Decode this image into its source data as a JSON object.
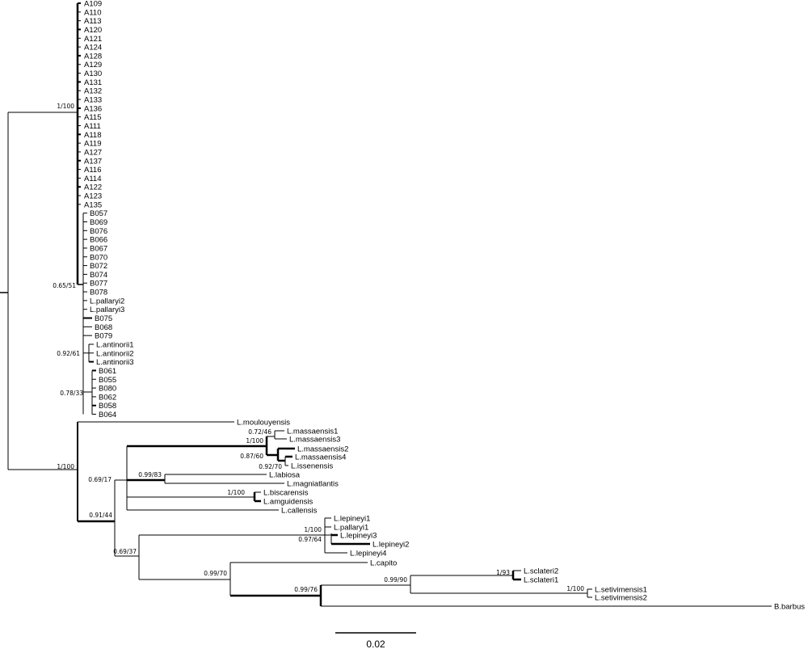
{
  "figure": {
    "type": "phylogenetic-tree",
    "scale_bar_label": "0.02",
    "line_color": "#000000",
    "background": "#ffffff"
  },
  "leaves": [
    "A109",
    "A110",
    "A113",
    "A120",
    "A121",
    "A124",
    "A128",
    "A129",
    "A130",
    "A131",
    "A132",
    "A133",
    "A136",
    "A115",
    "A111",
    "A118",
    "A119",
    "A127",
    "A137",
    "A116",
    "A114",
    "A122",
    "A123",
    "A135",
    "B057",
    "B069",
    "B076",
    "B066",
    "B067",
    "B070",
    "B072",
    "B074",
    "B077",
    "B078",
    "L.pallaryi2",
    "L.pallaryi3",
    "B075",
    "B068",
    "B079",
    "L.antinorii1",
    "L.antinorii2",
    "L.antinorii3",
    "B061",
    "B055",
    "B080",
    "B062",
    "B058",
    "B064",
    "L.moulouyensis",
    "L.massaensis1",
    "L.massaensis3",
    "L.massaensis2",
    "L.massaensis4",
    "L.issenensis",
    "L.labiosa",
    "L.magniatlantis",
    "L.biscarensis",
    "L.amguidensis",
    "L.callensis",
    "L.lepineyi1",
    "L.pallaryi1",
    "L.lepineyi3",
    "L.lepineyi2",
    "L.lepineyi4",
    "L.capito",
    "L.sclateri2",
    "L.sclateri1",
    "L.setivimensis1",
    "L.setivimensis2",
    "B.barbus"
  ],
  "supports": [
    "1/100",
    "0.65/51",
    "0.92/61",
    "0.78/33",
    "1/100",
    "0.72/46",
    "1/100",
    "0.87/60",
    "0.92/70",
    "0.69/17",
    "0.99/83",
    "1/100",
    "0.91/44",
    "1/100",
    "0.97/64",
    "0.69/37",
    "0.99/70",
    "0.99/76",
    "0.99/90",
    "1/93",
    "1/100"
  ]
}
